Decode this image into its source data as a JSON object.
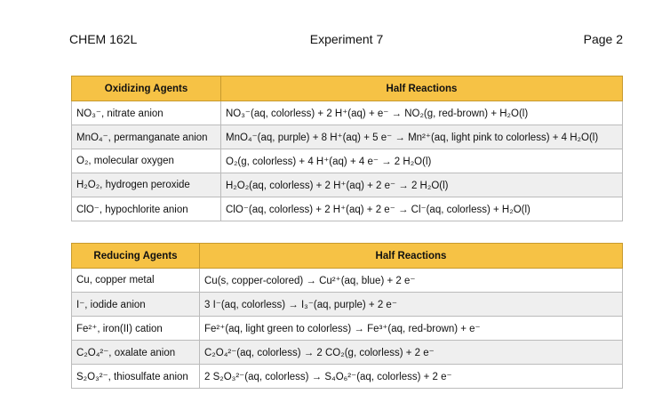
{
  "header": {
    "course": "CHEM 162L",
    "title": "Experiment 7",
    "page": "Page 2"
  },
  "tables": [
    {
      "columns": [
        "Oxidizing Agents",
        "Half Reactions"
      ],
      "rows": [
        [
          "NO₃⁻, nitrate anion",
          "NO₃⁻(aq, colorless) + 2 H⁺(aq) + e⁻ → NO₂(g, red-brown) + H₂O(l)"
        ],
        [
          "MnO₄⁻, permanganate anion",
          "MnO₄⁻(aq, purple) + 8 H⁺(aq) + 5 e⁻ → Mn²⁺(aq, light pink to colorless) + 4 H₂O(l)"
        ],
        [
          "O₂, molecular oxygen",
          "O₂(g, colorless) + 4 H⁺(aq) + 4 e⁻ → 2 H₂O(l)"
        ],
        [
          "H₂O₂, hydrogen peroxide",
          "H₂O₂(aq, colorless) + 2 H⁺(aq) + 2 e⁻ → 2 H₂O(l)"
        ],
        [
          "ClO⁻, hypochlorite anion",
          "ClO⁻(aq, colorless) + 2 H⁺(aq) + 2 e⁻ → Cl⁻(aq, colorless) + H₂O(l)"
        ]
      ]
    },
    {
      "columns": [
        "Reducing Agents",
        "Half Reactions"
      ],
      "rows": [
        [
          "Cu, copper metal",
          "Cu(s, copper-colored) → Cu²⁺(aq, blue) + 2 e⁻"
        ],
        [
          "I⁻, iodide anion",
          "3 I⁻(aq, colorless) → I₃⁻(aq, purple) + 2 e⁻"
        ],
        [
          "Fe²⁺, iron(II) cation",
          "Fe²⁺(aq, light green to colorless) → Fe³⁺(aq, red-brown) + e⁻"
        ],
        [
          "C₂O₄²⁻, oxalate anion",
          "C₂O₄²⁻(aq, colorless) → 2 CO₂(g, colorless) + 2 e⁻"
        ],
        [
          "S₂O₃²⁻, thiosulfate anion",
          "2 S₂O₃²⁻(aq, colorless) → S₄O₆²⁻(aq, colorless) + 2 e⁻"
        ]
      ]
    }
  ]
}
